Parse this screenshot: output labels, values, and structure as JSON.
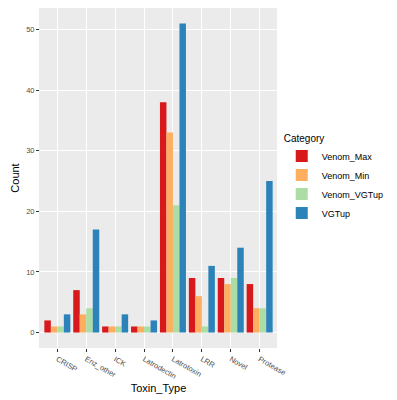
{
  "chart_data": {
    "type": "bar",
    "x_label": "Toxin_Type",
    "y_label": "Count",
    "legend_title": "Category",
    "legend": "right",
    "grid": true,
    "categories": [
      "CRISP",
      "Enz_other",
      "ICK",
      "Latrodectin",
      "Latrotoxin",
      "LRR",
      "Novel",
      "Protease"
    ],
    "series": [
      {
        "name": "Venom_Max",
        "color": "#d7191c",
        "values": [
          2,
          7,
          1,
          1,
          38,
          9,
          9,
          8
        ]
      },
      {
        "name": "Venom_Min",
        "color": "#fdae61",
        "values": [
          1,
          3,
          1,
          1,
          33,
          6,
          8,
          4
        ]
      },
      {
        "name": "Venom_VGTup",
        "color": "#abdda4",
        "values": [
          1,
          4,
          1,
          1,
          21,
          1,
          9,
          4
        ]
      },
      {
        "name": "VGTup",
        "color": "#2b83ba",
        "values": [
          3,
          17,
          3,
          2,
          51,
          11,
          14,
          25
        ]
      }
    ],
    "ylim": [
      -2.55,
      53.55
    ],
    "yticks": [
      0,
      10,
      20,
      30,
      40,
      50
    ]
  }
}
